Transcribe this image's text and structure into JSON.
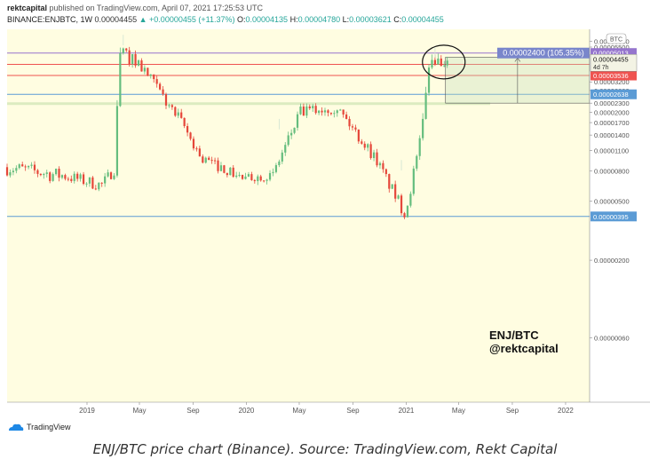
{
  "header": {
    "publisher": "rektcapital",
    "published_text": "published on TradingView.com, April 07, 2021 17:25:53 UTC",
    "symbol": "BINANCE:ENJBTC, 1W",
    "last": "0.00004455",
    "change": "+0.00000455 (+11.37%)",
    "o_label": "O:",
    "o": "0.00004135",
    "h_label": "H:",
    "h": "0.00004780",
    "l_label": "L:",
    "l": "0.00003621",
    "c_label": "C:",
    "c": "0.00004455"
  },
  "watermark": {
    "line1": "ENJ/BTC",
    "line2": "@rektcapital"
  },
  "measure_label": "0.00002400 (105.35%)",
  "countdown": "4d 7h",
  "currency_badge": "BTC",
  "logo_text": "TradingView",
  "caption": "ENJ/BTC price chart (Binance). Source: TradingView.com, Rekt Capital",
  "colors": {
    "background": "#fffde1",
    "up": "#65bd7e",
    "down": "#e5473a",
    "purple_line": "#9575cd",
    "red_line": "#ef5350",
    "blue_line": "#5b9bd5",
    "green_zone": "#dcebc0",
    "measure_label_bg": "#7986cb"
  },
  "chart_data": {
    "type": "candlestick",
    "symbol": "ENJBTC",
    "interval": "1W",
    "y_scale": "log",
    "y_ticks": [
      "0.00006000",
      "0.00005500",
      "0.00005013",
      "0.00004204",
      "0.00003536",
      "0.00003200",
      "0.00002800",
      "0.00002638",
      "0.00002300",
      "0.00002000",
      "0.00001700",
      "0.00001400",
      "0.00001100",
      "0.00000800",
      "0.00000500",
      "0.00000395",
      "0.00000200",
      "0.00000060"
    ],
    "x_ticks": [
      {
        "label": "2019",
        "t": "2019-01-01"
      },
      {
        "label": "May",
        "t": "2019-05-01"
      },
      {
        "label": "Sep",
        "t": "2019-09-01"
      },
      {
        "label": "2020",
        "t": "2020-01-01"
      },
      {
        "label": "May",
        "t": "2020-05-01"
      },
      {
        "label": "Sep",
        "t": "2020-09-01"
      },
      {
        "label": "2021",
        "t": "2021-01-01"
      },
      {
        "label": "May",
        "t": "2021-05-01"
      },
      {
        "label": "Sep",
        "t": "2021-09-01"
      },
      {
        "label": "2022",
        "t": "2022-01-01"
      }
    ],
    "levels": [
      {
        "price": 5.013e-05,
        "label": "0.00005013",
        "color": "#9575cd"
      },
      {
        "price": 4.204e-05,
        "label": "0.00004204",
        "color": "#ef5350"
      },
      {
        "price": 3.536e-05,
        "label": "0.00003536",
        "color": "#ef5350"
      },
      {
        "price": 2.638e-05,
        "label": "0.00002638",
        "color": "#5b9bd5"
      },
      {
        "price": 3.95e-06,
        "label": "0.00000395",
        "color": "#5b9bd5"
      }
    ],
    "current_price": {
      "price": 4.455e-05,
      "label": "0.00004455"
    },
    "support_zone": {
      "low": 2.25e-05,
      "high": 2.33e-05
    },
    "measure": {
      "from": 2.3e-05,
      "to": 4.7e-05,
      "start": "2021-04-01",
      "end": "2021-12-31"
    },
    "highlight": {
      "date": "2021-03-28",
      "price": 4.36e-05
    },
    "segments": [
      {
        "start": "2018-07-02",
        "end": "2018-10-29",
        "from": 8.5e-06,
        "to": 7.5e-06,
        "vol": 0.12
      },
      {
        "start": "2018-11-05",
        "end": "2019-01-28",
        "from": 7.5e-06,
        "to": 6.5e-06,
        "vol": 0.1
      },
      {
        "start": "2019-02-04",
        "end": "2019-03-04",
        "from": 6.5e-06,
        "to": 8.2e-06,
        "vol": 0.09
      },
      {
        "start": "2019-03-11",
        "end": "2019-03-11",
        "from": 8.2e-06,
        "to": 2.2e-05,
        "vol": 0
      },
      {
        "start": "2019-03-18",
        "end": "2019-03-18",
        "from": 2.2e-05,
        "to": 5e-05,
        "vol": 0
      },
      {
        "start": "2019-03-25",
        "end": "2019-04-22",
        "from": 5e-05,
        "to": 4.4e-05,
        "vol": 0.1
      },
      {
        "start": "2019-04-29",
        "end": "2019-07-29",
        "from": 4.3e-05,
        "to": 1.8e-05,
        "vol": 0.11
      },
      {
        "start": "2019-08-05",
        "end": "2019-09-23",
        "from": 1.7e-05,
        "to": 9.5e-06,
        "vol": 0.1
      },
      {
        "start": "2019-09-30",
        "end": "2019-12-30",
        "from": 9.5e-06,
        "to": 7e-06,
        "vol": 0.08
      },
      {
        "start": "2020-01-06",
        "end": "2020-03-02",
        "from": 7.2e-06,
        "to": 7.5e-06,
        "vol": 0.07
      },
      {
        "start": "2020-03-09",
        "end": "2020-05-04",
        "from": 8.5e-06,
        "to": 2e-05,
        "vol": 0.1
      },
      {
        "start": "2020-05-11",
        "end": "2020-07-27",
        "from": 2e-05,
        "to": 2.2e-05,
        "vol": 0.1
      },
      {
        "start": "2020-08-03",
        "end": "2020-10-26",
        "from": 2e-05,
        "to": 9.5e-06,
        "vol": 0.1
      },
      {
        "start": "2020-11-02",
        "end": "2020-12-28",
        "from": 8.5e-06,
        "to": 4.2e-06,
        "vol": 0.1
      },
      {
        "start": "2021-01-04",
        "end": "2021-02-01",
        "from": 5e-06,
        "to": 1.2e-05,
        "vol": 0.12
      },
      {
        "start": "2021-02-08",
        "end": "2021-02-08",
        "from": 1.2e-05,
        "to": 1.8e-05,
        "vol": 0
      },
      {
        "start": "2021-02-15",
        "end": "2021-02-15",
        "from": 1.8e-05,
        "to": 2.7e-05,
        "vol": 0
      },
      {
        "start": "2021-02-22",
        "end": "2021-02-22",
        "from": 2.7e-05,
        "to": 4e-05,
        "vol": 0
      },
      {
        "start": "2021-03-01",
        "end": "2021-03-01",
        "from": 4e-05,
        "to": 4.5e-05,
        "vol": 0
      },
      {
        "start": "2021-03-08",
        "end": "2021-03-08",
        "from": 4.5e-05,
        "to": 4.2e-05,
        "vol": 0
      },
      {
        "start": "2021-03-15",
        "end": "2021-03-15",
        "from": 4.2e-05,
        "to": 4.6e-05,
        "vol": 0
      },
      {
        "start": "2021-03-22",
        "end": "2021-03-22",
        "from": 4.6e-05,
        "to": 4.1e-05,
        "vol": 0
      },
      {
        "start": "2021-03-29",
        "end": "2021-03-29",
        "from": 4.1e-05,
        "to": 4.135e-05,
        "vol": 0
      },
      {
        "start": "2021-04-05",
        "end": "2021-04-05",
        "from": 4.135e-05,
        "to": 4.455e-05,
        "vol": 0
      }
    ]
  }
}
